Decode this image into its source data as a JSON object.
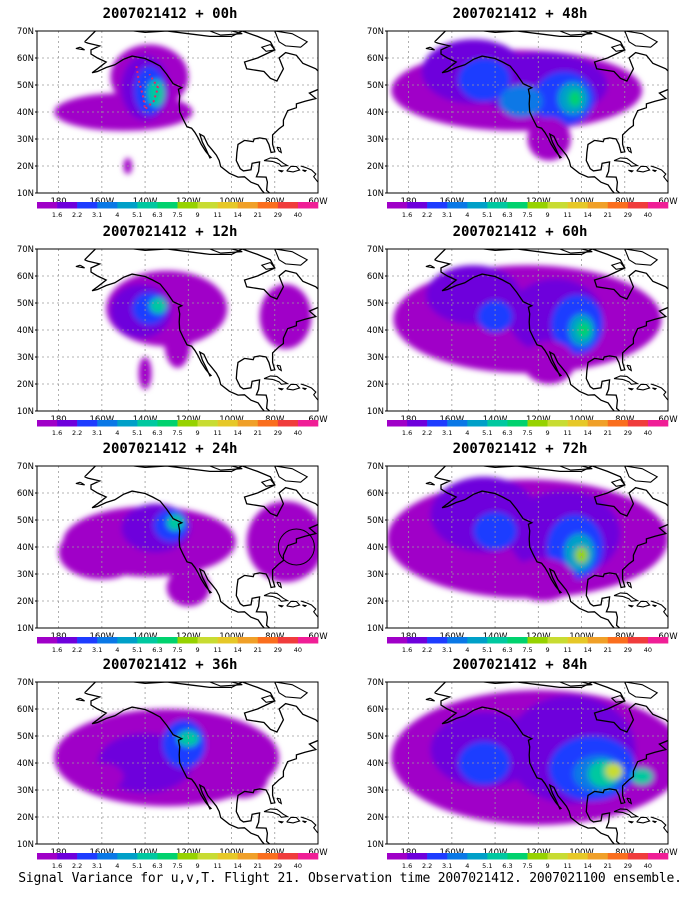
{
  "panels": [
    {
      "title": "2007021412 + 00h",
      "lead": "00h"
    },
    {
      "title": "2007021412 + 48h",
      "lead": "48h"
    },
    {
      "title": "2007021412 + 12h",
      "lead": "12h"
    },
    {
      "title": "2007021412 + 60h",
      "lead": "60h"
    },
    {
      "title": "2007021412 + 24h",
      "lead": "24h"
    },
    {
      "title": "2007021412 + 72h",
      "lead": "72h"
    },
    {
      "title": "2007021412 + 36h",
      "lead": "36h"
    },
    {
      "title": "2007021412 + 84h",
      "lead": "84h"
    }
  ],
  "lat_ticks": [
    "10N",
    "20N",
    "30N",
    "40N",
    "50N",
    "60N",
    "70N"
  ],
  "lon_ticks": [
    "180",
    "160W",
    "140W",
    "120W",
    "100W",
    "80W",
    "60W"
  ],
  "colorbar": {
    "labels": [
      "1.6",
      "2.2",
      "3.1",
      "4",
      "5.1",
      "6.3",
      "7.5",
      "9",
      "11",
      "14",
      "21",
      "29",
      "40"
    ],
    "colors": [
      "#a000c8",
      "#6e00dc",
      "#1e3cff",
      "#0a78e6",
      "#00a0c8",
      "#00c8a0",
      "#00d26e",
      "#96d200",
      "#c8dc32",
      "#e6c828",
      "#f0a028",
      "#fa6e1e",
      "#f03c3c",
      "#f01e96"
    ]
  },
  "footer": "Signal Variance for u,v,T. Flight 21. Observation time 2007021412. 2007021100 ensemble."
}
